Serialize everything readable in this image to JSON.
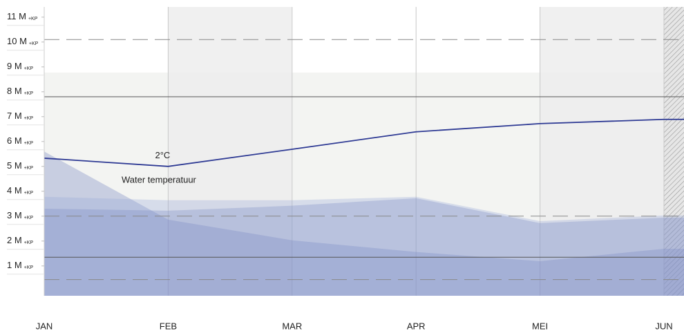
{
  "chart_data": {
    "type": "line",
    "categories": [
      "JAN",
      "FEB",
      "MAR",
      "APR",
      "MEI",
      "JUN"
    ],
    "ylim": [
      -0.2,
      11.3
    ],
    "yticks": [
      {
        "value": 1,
        "label": "1 M"
      },
      {
        "value": 2,
        "label": "2 M"
      },
      {
        "value": 3,
        "label": "3 M"
      },
      {
        "value": 4,
        "label": "4 M"
      },
      {
        "value": 5,
        "label": "5 M"
      },
      {
        "value": 6,
        "label": "6 M"
      },
      {
        "value": 7,
        "label": "7 M"
      },
      {
        "value": 8,
        "label": "8 M"
      },
      {
        "value": 9,
        "label": "9 M"
      },
      {
        "value": 10,
        "label": "10 M"
      },
      {
        "value": 11,
        "label": "11 M"
      }
    ],
    "ytick_suffix": "+KP",
    "grid": true,
    "reference_lines": [
      {
        "value": 7.8,
        "style": "solid"
      },
      {
        "value": 1.35,
        "style": "solid"
      },
      {
        "value": 10.1,
        "style": "dashed"
      },
      {
        "value": 3.0,
        "style": "dashed"
      },
      {
        "value": 0.45,
        "style": "dashed"
      }
    ],
    "series": [
      {
        "type": "area",
        "color": "rgba(120,135,195,0.35)",
        "values": [
          5.6,
          2.86,
          2.03,
          1.56,
          1.19,
          1.69
        ]
      },
      {
        "type": "area",
        "color": "rgba(150,165,215,0.3)",
        "values": [
          3.78,
          3.64,
          3.64,
          3.78,
          2.8,
          3.03
        ]
      },
      {
        "type": "area",
        "color": "rgba(120,135,195,0.3)",
        "values": [
          3.3,
          3.22,
          3.42,
          3.72,
          2.72,
          2.94
        ]
      },
      {
        "type": "line",
        "name": "Water temperatuur",
        "color": "#2e3a94",
        "values": [
          5.33,
          5.0,
          5.69,
          6.39,
          6.72,
          6.89
        ]
      }
    ],
    "annotations": [
      {
        "text": "2°C",
        "series": 3,
        "index": 1
      }
    ]
  }
}
